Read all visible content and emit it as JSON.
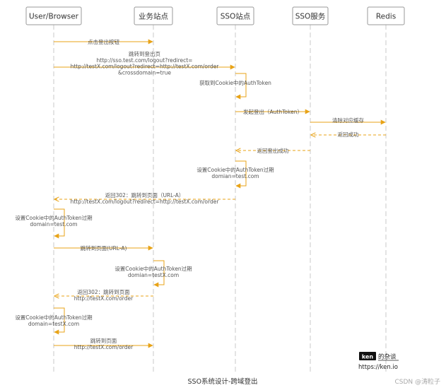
{
  "participants": [
    {
      "id": "user",
      "label": "User/Browser"
    },
    {
      "id": "biz",
      "label": "业务站点"
    },
    {
      "id": "ssosite",
      "label": "SSO站点"
    },
    {
      "id": "ssosvc",
      "label": "SSO服务"
    },
    {
      "id": "redis",
      "label": "Redis"
    }
  ],
  "messages": [
    {
      "from": "user",
      "to": "biz",
      "kind": "solid",
      "lines": [
        "点击登出按钮"
      ]
    },
    {
      "from": "user",
      "to": "ssosite",
      "kind": "solid",
      "lines": [
        "跳转到登出页",
        "http://sso.test.com/logout?redirect=",
        "http://testX.com/logout?redirect=http://testX.com/order",
        "&crossdomain=true"
      ]
    },
    {
      "from": "ssosite",
      "to": "ssosite",
      "kind": "self",
      "lines": [
        "获取到Cookie中的AuthToken"
      ]
    },
    {
      "from": "ssosite",
      "to": "ssosvc",
      "kind": "solid",
      "lines": [
        "发起登出（AuthToken）"
      ]
    },
    {
      "from": "ssosvc",
      "to": "redis",
      "kind": "solid",
      "lines": [
        "清除对应缓存"
      ]
    },
    {
      "from": "redis",
      "to": "ssosvc",
      "kind": "dashed",
      "lines": [
        "返回成功"
      ]
    },
    {
      "from": "ssosvc",
      "to": "ssosite",
      "kind": "dashed",
      "lines": [
        "返回登出成功"
      ]
    },
    {
      "from": "ssosite",
      "to": "ssosite",
      "kind": "self",
      "lines": [
        "设置Cookie中的AuthToken过期",
        "domian=test.com"
      ]
    },
    {
      "from": "ssosite",
      "to": "user",
      "kind": "dashed",
      "lines": [
        "返回302：跳转到页面（URL-A）",
        "http://testX.com/logout?redirect=http://testX.com/order"
      ]
    },
    {
      "from": "user",
      "to": "user",
      "kind": "self",
      "lines": [
        "设置Cookie中的AuthToken过期",
        "domain=test.com"
      ]
    },
    {
      "from": "user",
      "to": "biz",
      "kind": "solid",
      "lines": [
        "跳转到页面(URL-A)"
      ]
    },
    {
      "from": "biz",
      "to": "biz",
      "kind": "self",
      "lines": [
        "设置Cookie中的AuthToken过期",
        "domian=testX.com"
      ]
    },
    {
      "from": "biz",
      "to": "user",
      "kind": "dashed",
      "lines": [
        "返回302：跳转到页面",
        "http://testX.com/order"
      ]
    },
    {
      "from": "user",
      "to": "user",
      "kind": "self",
      "lines": [
        "设置Cookie中的AuthToken过期",
        "domain=testX.com"
      ]
    },
    {
      "from": "user",
      "to": "biz",
      "kind": "solid",
      "lines": [
        "跳转到页面",
        "http://testX.com/order"
      ]
    }
  ],
  "caption": "SSO系统设计-跨域登出",
  "brand": {
    "badge": "ken",
    "name": "的杂谈",
    "url": "https://ken.io"
  },
  "watermark": "CSDN @涛粒子",
  "colors": {
    "arrow": "#e8a317",
    "text": "#555555",
    "lifeline": "#c8c8c8",
    "box_border": "#9a9a9a"
  }
}
